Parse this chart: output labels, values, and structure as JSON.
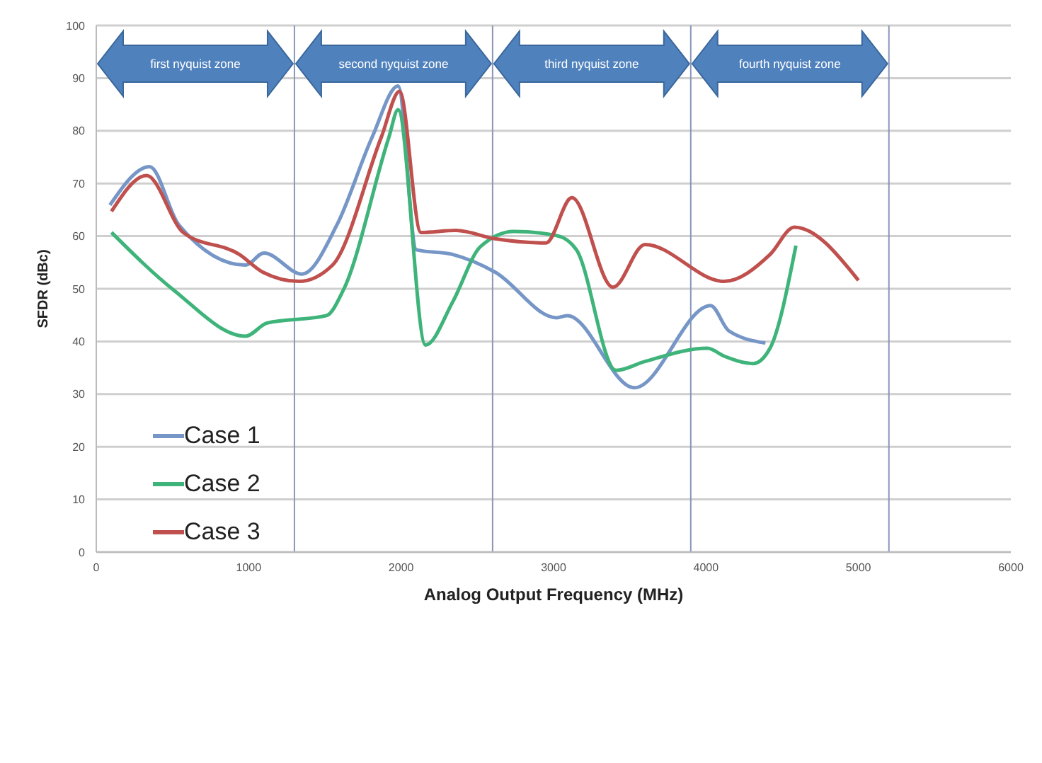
{
  "chart_data": {
    "type": "line",
    "xlabel": "Analog Output Frequency (MHz)",
    "ylabel": "SFDR (dBc)",
    "xlim": [
      0,
      6000
    ],
    "xticks": [
      0,
      1000,
      2000,
      3000,
      4000,
      5000,
      6000
    ],
    "ylim": [
      0,
      100
    ],
    "yticks": [
      0,
      10,
      20,
      30,
      40,
      50,
      60,
      70,
      80,
      90,
      100
    ],
    "grid": "y",
    "legend": "bottom left",
    "marker": "none",
    "line_style": "solid",
    "ref_lines": [
      {
        "axis": "x",
        "value": 1300,
        "color": "#8896b8"
      },
      {
        "axis": "x",
        "value": 2600,
        "color": "#8896b8"
      },
      {
        "axis": "x",
        "value": 3900,
        "color": "#8896b8"
      },
      {
        "axis": "x",
        "value": 5200,
        "color": "#8896b8"
      }
    ],
    "annotations": [
      "first nyquist zone",
      "second nyquist zone",
      "third nyquist zone",
      "fourth nyquist zone"
    ],
    "series": [
      {
        "name": "Case 1",
        "color": "#7596c6",
        "x": [
          90,
          350,
          540,
          980,
          1100,
          1350,
          1580,
          1810,
          1980,
          2100,
          2340,
          2615,
          3020,
          3090,
          3530,
          4030,
          4150,
          4390
        ],
        "values": [
          65.9,
          73.2,
          62.2,
          54.5,
          56.8,
          52.8,
          62.2,
          78.8,
          88.5,
          57.4,
          56.5,
          53.2,
          44.5,
          44.9,
          31.2,
          46.8,
          42,
          39.7
        ]
      },
      {
        "name": "Case 2",
        "color": "#3fb47a",
        "x": [
          100,
          510,
          980,
          1120,
          1510,
          1620,
          1920,
          1980,
          2160,
          2340,
          2520,
          2740,
          3020,
          3150,
          3410,
          3600,
          4010,
          4120,
          4310,
          4420,
          4590
        ],
        "values": [
          60.7,
          49.7,
          41,
          43.5,
          44.9,
          49.7,
          78.8,
          84,
          39.3,
          47.6,
          58,
          60.9,
          60.1,
          57.4,
          34.5,
          36.2,
          38.7,
          37.2,
          35.8,
          38.7,
          58.2
        ]
      },
      {
        "name": "Case 3",
        "color": "#c0504d",
        "x": [
          100,
          330,
          570,
          940,
          1090,
          1330,
          1550,
          1870,
          1990,
          2130,
          2360,
          2615,
          2950,
          3120,
          3390,
          3600,
          4120,
          4420,
          4580,
          5000
        ],
        "values": [
          64.7,
          71.5,
          60.7,
          56.5,
          53.2,
          51.4,
          54.5,
          78.8,
          87.5,
          60.7,
          61.1,
          59.5,
          58.7,
          67.3,
          50.3,
          58.4,
          51.4,
          56.5,
          61.7,
          51.6
        ]
      }
    ]
  }
}
